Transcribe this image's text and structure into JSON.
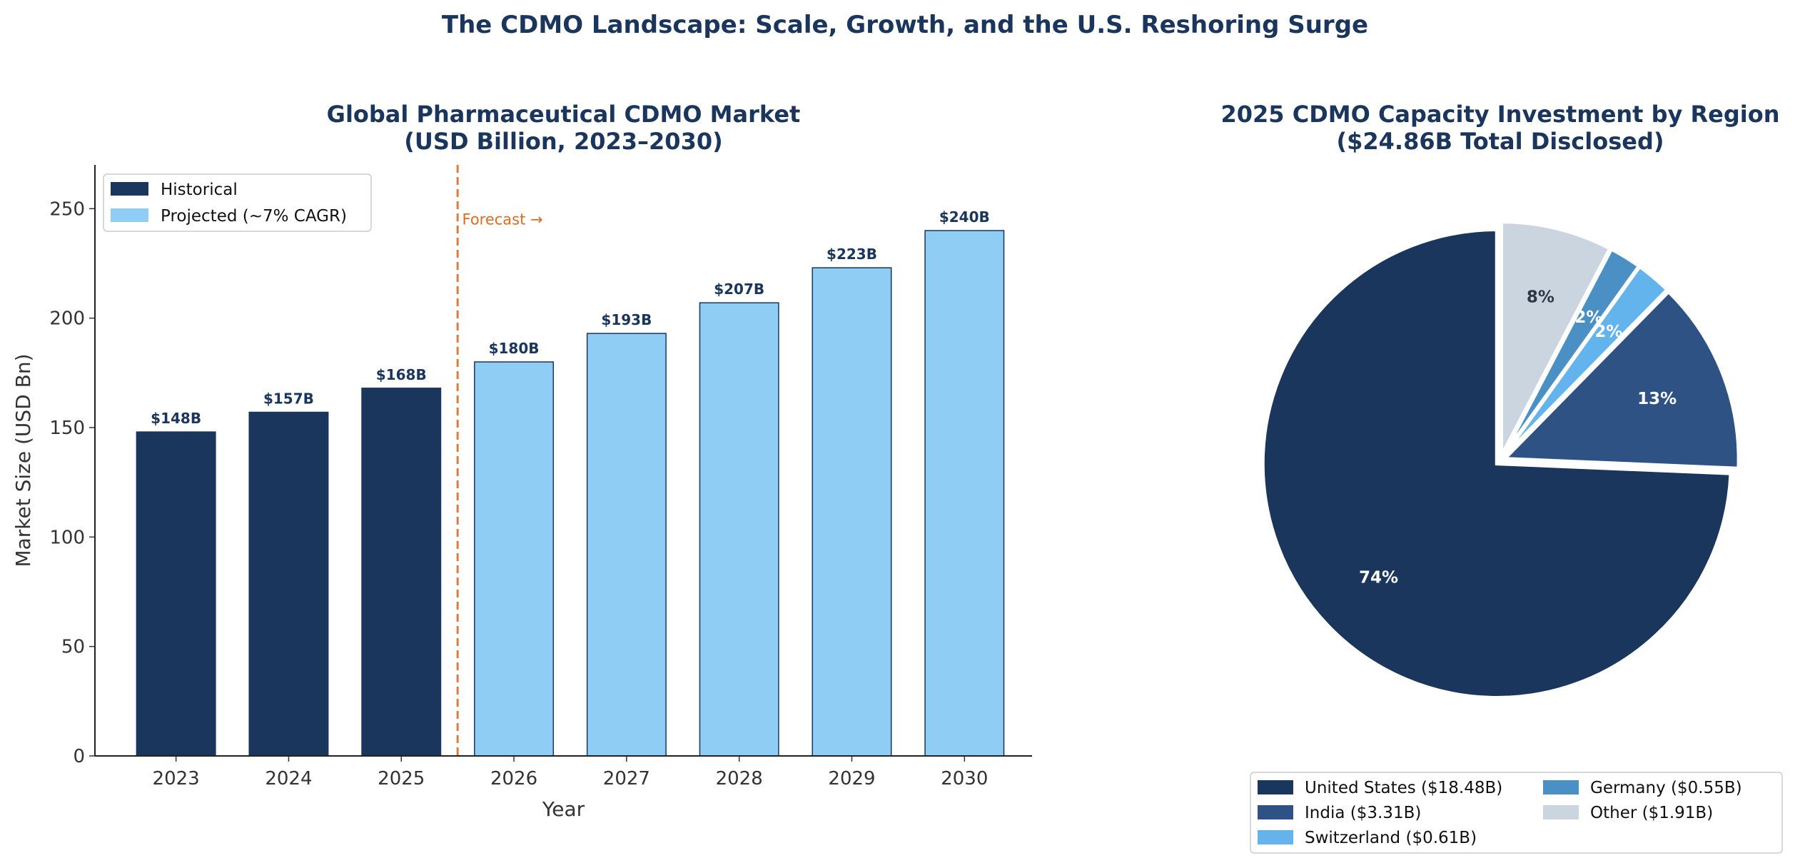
{
  "suptitle": "The CDMO Landscape: Scale, Growth, and the U.S. Reshoring Surge",
  "chart_data": [
    {
      "type": "bar",
      "title": [
        "Global Pharmaceutical CDMO Market",
        "(USD Billion, 2023–2030)"
      ],
      "xlabel": "Year",
      "ylabel": "Market Size (USD Bn)",
      "categories": [
        "2023",
        "2024",
        "2025",
        "2026",
        "2027",
        "2028",
        "2029",
        "2030"
      ],
      "values": [
        148,
        157,
        168,
        180,
        193,
        207,
        223,
        240
      ],
      "data_labels": [
        "$148B",
        "$157B",
        "$168B",
        "$180B",
        "$193B",
        "$207B",
        "$223B",
        "$240B"
      ],
      "historical_count": 3,
      "ylim": [
        0,
        270
      ],
      "yticks": [
        0,
        50,
        100,
        150,
        200,
        250
      ],
      "grid": false,
      "legend": {
        "placement": "upper-left",
        "entries": [
          "Historical",
          "Projected (~7% CAGR)"
        ]
      },
      "annotation": {
        "text": "Forecast →",
        "x_between": [
          "2025",
          "2026"
        ],
        "y": 245
      },
      "colors": {
        "historical": "#1b365d",
        "projected": "#90cdf4",
        "edge": "#1b365d",
        "divider": "#e07b39",
        "annotation": "#dd6b20"
      }
    },
    {
      "type": "pie",
      "title": [
        "2025 CDMO Capacity Investment by Region",
        "($24.86B Total Disclosed)"
      ],
      "slices": [
        {
          "label": "United States ($18.48B)",
          "value": 18.48,
          "pct": "74%",
          "color": "#1b365d",
          "text_color": "#ffffff"
        },
        {
          "label": "India ($3.31B)",
          "value": 3.31,
          "pct": "13%",
          "color": "#2e5283",
          "text_color": "#ffffff"
        },
        {
          "label": "Switzerland ($0.61B)",
          "value": 0.61,
          "pct": "2%",
          "color": "#63b3ed",
          "text_color": "#ffffff"
        },
        {
          "label": "Germany ($0.55B)",
          "value": 0.55,
          "pct": "2%",
          "color": "#4a90c4",
          "text_color": "#ffffff"
        },
        {
          "label": "Other ($1.91B)",
          "value": 1.91,
          "pct": "8%",
          "color": "#cbd5e0",
          "text_color": "#2d3748"
        }
      ],
      "start_angle": 90,
      "legend": {
        "placement": "bottom",
        "columns": 2
      }
    }
  ]
}
